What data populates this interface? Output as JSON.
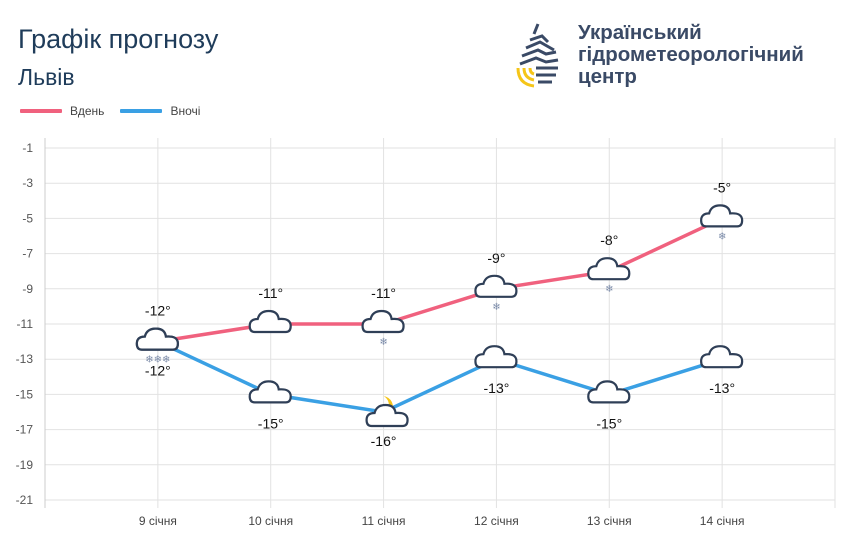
{
  "header": {
    "title": "Графік прогнозу",
    "city": "Львів"
  },
  "logo": {
    "lines": [
      "Український",
      "гідрометеорологічний",
      "центр"
    ]
  },
  "chart_data": {
    "type": "line",
    "categories": [
      "9 січня",
      "10 січня",
      "11 січня",
      "12 січня",
      "13 січня",
      "14 січня"
    ],
    "ylim": [
      -21,
      -1
    ],
    "yticks": [
      -1,
      -3,
      -5,
      -7,
      -9,
      -11,
      -13,
      -15,
      -17,
      -19,
      -21
    ],
    "grid": true,
    "legend": "top-left",
    "series": [
      {
        "name": "Вдень",
        "color": "#f0617e",
        "values": [
          -12,
          -11,
          -11,
          -9,
          -8,
          -5
        ],
        "labels": [
          "-12°",
          "-11°",
          "-11°",
          "-9°",
          "-8°",
          "-5°"
        ],
        "icons": [
          "cloud-snow",
          "cloud",
          "cloud-snow",
          "cloud-snow",
          "cloud-snow",
          "cloud-snow"
        ]
      },
      {
        "name": "Вночі",
        "color": "#3aa0e4",
        "values": [
          -12,
          -15,
          -16,
          -13,
          -15,
          -13
        ],
        "labels": [
          "-12°",
          "-15°",
          "-16°",
          "-13°",
          "-15°",
          "-13°"
        ],
        "icons": [
          "cloud",
          "cloud",
          "cloud-moon",
          "cloud",
          "cloud",
          "cloud"
        ]
      }
    ]
  }
}
